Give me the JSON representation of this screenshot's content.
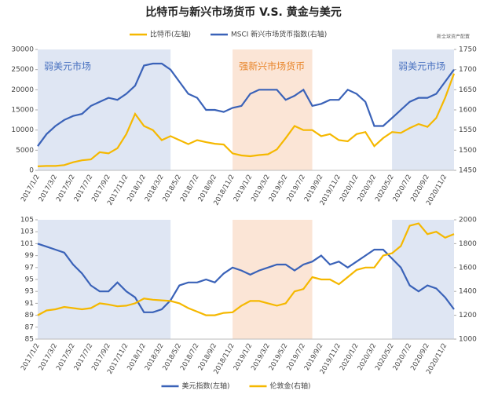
{
  "chart_data": [
    {
      "type": "line",
      "title": "比特币与新兴市场货币 V.S. 黄金与美元",
      "note": "新全球资产配置",
      "legend": "top",
      "categories": [
        "2017/1/2",
        null,
        "2017/3/2",
        null,
        "2017/5/2",
        null,
        "2017/7/2",
        null,
        "2017/9/2",
        null,
        "2017/11/2",
        null,
        "2018/1/2",
        null,
        "2018/3/2",
        null,
        "2018/5/2",
        null,
        "2018/7/2",
        null,
        "2018/9/2",
        null,
        "2018/11/2",
        null,
        "2019/1/2",
        null,
        "2019/3/2",
        null,
        "2019/5/2",
        null,
        "2019/7/2",
        null,
        "2019/9/2",
        null,
        "2019/11/2",
        null,
        "2020/1/2",
        null,
        "2020/3/2",
        null,
        "2020/5/2",
        null,
        "2020/7/2",
        null,
        "2020/9/2",
        null,
        "2020/11/2",
        null
      ],
      "series": [
        {
          "name": "比特币(左轴)",
          "color": "#f5b800",
          "axis": "y",
          "values": [
            1000,
            1100,
            1100,
            1300,
            2000,
            2500,
            2700,
            4500,
            4200,
            5500,
            9000,
            14000,
            11000,
            10000,
            7500,
            8500,
            7500,
            6500,
            7500,
            7000,
            6600,
            6400,
            4200,
            3700,
            3500,
            3800,
            4000,
            5200,
            8000,
            11000,
            10000,
            10000,
            8500,
            9000,
            7500,
            7200,
            9000,
            9500,
            6000,
            8000,
            9500,
            9300,
            10500,
            11500,
            10800,
            13000,
            18000,
            24000
          ]
        },
        {
          "name": "MSCI 新兴市场货币指数(右轴)",
          "color": "#3a62b8",
          "axis": "y2",
          "values": [
            1510,
            1540,
            1560,
            1575,
            1585,
            1590,
            1610,
            1620,
            1630,
            1625,
            1640,
            1660,
            1710,
            1715,
            1715,
            1700,
            1670,
            1640,
            1630,
            1600,
            1600,
            1595,
            1605,
            1610,
            1640,
            1650,
            1650,
            1650,
            1625,
            1635,
            1650,
            1610,
            1615,
            1625,
            1625,
            1650,
            1640,
            1620,
            1560,
            1560,
            1580,
            1600,
            1620,
            1630,
            1630,
            1640,
            1670,
            1700
          ]
        }
      ],
      "ylim": [
        0,
        30000
      ],
      "yticks": [
        0,
        5000,
        10000,
        15000,
        20000,
        25000,
        30000
      ],
      "y2lim": [
        1450,
        1750
      ],
      "y2ticks": [
        1450,
        1500,
        1550,
        1600,
        1650,
        1700,
        1750
      ],
      "shaded_regions": [
        {
          "label": "弱美元市场",
          "from": "2017/1/2",
          "to": "2018/3/2",
          "color": "#dfe6f3",
          "text_color": "#4a72c0"
        },
        {
          "label": "强新兴市场货币",
          "from": "2018/11/2",
          "to": "2019/7/2",
          "color": "#fbe5d6",
          "text_color": "#e8852a"
        },
        {
          "label": "弱美元市场",
          "from": "2020/5/2",
          "color": "#dfe6f3",
          "text_color": "#4a72c0"
        }
      ]
    },
    {
      "type": "line",
      "legend": "bottom",
      "categories": [
        "2017/1/2",
        null,
        "2017/3/2",
        null,
        "2017/5/2",
        null,
        "2017/7/2",
        null,
        "2017/9/2",
        null,
        "2017/11/2",
        null,
        "2018/1/2",
        null,
        "2018/3/2",
        null,
        "2018/5/2",
        null,
        "2018/7/2",
        null,
        "2018/9/2",
        null,
        "2018/11/2",
        null,
        "2019/1/2",
        null,
        "2019/3/2",
        null,
        "2019/5/2",
        null,
        "2019/7/2",
        null,
        "2019/9/2",
        null,
        "2019/11/2",
        null,
        "2020/1/2",
        null,
        "2020/3/2",
        null,
        "2020/5/2",
        null,
        "2020/7/2",
        null,
        "2020/9/2",
        null,
        "2020/11/2",
        null
      ],
      "series": [
        {
          "name": "美元指数(左轴)",
          "color": "#3a62b8",
          "axis": "y",
          "values": [
            101,
            100.5,
            100,
            99.5,
            97.5,
            96,
            94,
            93,
            93,
            94.5,
            93,
            92,
            89.5,
            89.5,
            90,
            91.5,
            94,
            94.5,
            94.5,
            95,
            94.5,
            96,
            97,
            96.5,
            95.8,
            96.5,
            97,
            97.5,
            97.5,
            96.5,
            97.5,
            98,
            99,
            97.5,
            98,
            97,
            98,
            99,
            100,
            100,
            98.5,
            97,
            94,
            93,
            94,
            93.5,
            92,
            90
          ]
        },
        {
          "name": "伦敦金(右轴)",
          "color": "#f5b800",
          "axis": "y2",
          "values": [
            1200,
            1240,
            1250,
            1270,
            1260,
            1250,
            1260,
            1300,
            1290,
            1275,
            1280,
            1300,
            1340,
            1330,
            1325,
            1320,
            1300,
            1260,
            1230,
            1200,
            1200,
            1220,
            1225,
            1280,
            1320,
            1320,
            1300,
            1280,
            1300,
            1400,
            1420,
            1520,
            1500,
            1500,
            1460,
            1520,
            1580,
            1600,
            1600,
            1700,
            1720,
            1780,
            1950,
            1970,
            1880,
            1900,
            1850,
            1880
          ]
        }
      ],
      "ylim": [
        85,
        105
      ],
      "yticks": [
        85,
        87,
        89,
        91,
        93,
        95,
        97,
        99,
        101,
        103,
        105
      ],
      "y2lim": [
        1000,
        2000
      ],
      "y2ticks": [
        1000,
        1200,
        1400,
        1600,
        1800,
        2000
      ],
      "shaded_regions": [
        {
          "from": "2017/1/2",
          "to": "2018/3/2",
          "color": "#dfe6f3"
        },
        {
          "from": "2018/11/2",
          "to": "2019/7/2",
          "color": "#fbe5d6"
        },
        {
          "from": "2020/5/2",
          "color": "#dfe6f3"
        }
      ]
    }
  ]
}
